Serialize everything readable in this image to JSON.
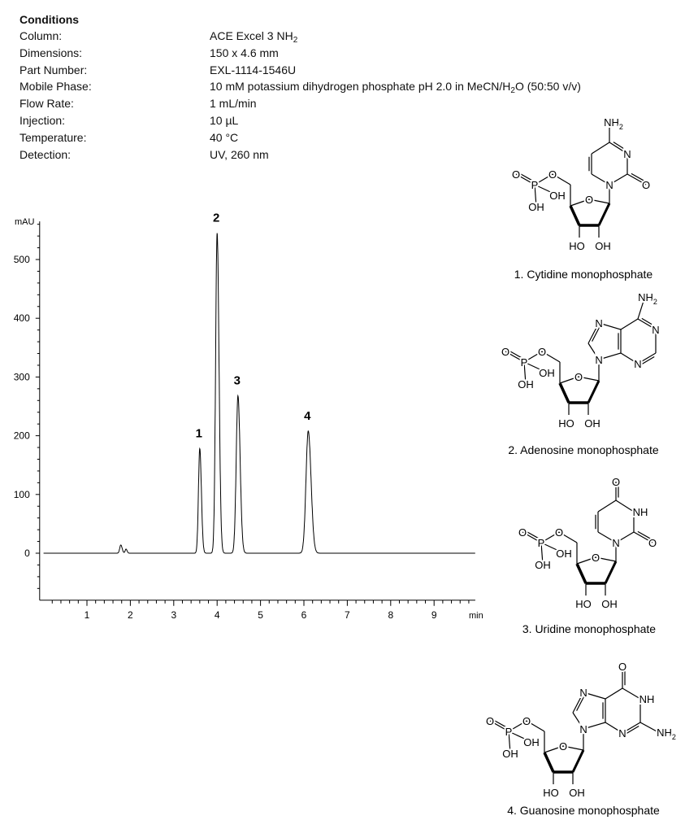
{
  "conditions": {
    "title": "Conditions",
    "rows": [
      {
        "label": "Column:",
        "value": "ACE Excel 3 NH",
        "sub": "2",
        "tail": ""
      },
      {
        "label": "Dimensions:",
        "value": "150 x 4.6 mm"
      },
      {
        "label": "Part Number:",
        "value": "EXL-1114-1546U"
      },
      {
        "label": "Mobile Phase:",
        "value": "10 mM potassium dihydrogen  phosphate pH 2.0 in MeCN/H",
        "sub": "2",
        "tail": "O  (50:50 v/v)"
      },
      {
        "label": "Flow Rate:",
        "value": "1 mL/min"
      },
      {
        "label": "Injection:",
        "value": "10 µL"
      },
      {
        "label": "Temperature:",
        "value": "40 °C"
      },
      {
        "label": "Detection:",
        "value": "UV, 260 nm"
      }
    ]
  },
  "chart_data": {
    "type": "line",
    "title": "",
    "xlabel": "min",
    "ylabel": "mAU",
    "xlim": [
      -0.09,
      9.95
    ],
    "ylim": [
      -80,
      565
    ],
    "x_ticks": [
      1,
      2,
      3,
      4,
      5,
      6,
      7,
      8,
      9
    ],
    "y_ticks": [
      0,
      100,
      200,
      300,
      400,
      500
    ],
    "grid": false,
    "line_color": "#000000",
    "peaks": [
      {
        "label": "",
        "rt": 1.78,
        "height": 14,
        "width": 0.025
      },
      {
        "label": "",
        "rt": 1.9,
        "height": 7,
        "width": 0.02
      },
      {
        "label": "1",
        "rt": 3.6,
        "height": 178,
        "width": 0.03
      },
      {
        "label": "2",
        "rt": 4.0,
        "height": 545,
        "width": 0.035
      },
      {
        "label": "3",
        "rt": 4.48,
        "height": 268,
        "width": 0.04
      },
      {
        "label": "4",
        "rt": 6.1,
        "height": 208,
        "width": 0.052
      }
    ]
  },
  "atoms": {
    "O": "O",
    "P": "P",
    "OH": "OH",
    "HO": "HO",
    "N": "N",
    "NH": "NH",
    "sub2": "2"
  },
  "compounds": [
    {
      "caption": "1. Cytidine monophosphate",
      "base": "cytosine"
    },
    {
      "caption": "2. Adenosine monophosphate",
      "base": "adenine"
    },
    {
      "caption": "3. Uridine monophosphate",
      "base": "uracil"
    },
    {
      "caption": "4. Guanosine monophosphate",
      "base": "guanine"
    }
  ]
}
